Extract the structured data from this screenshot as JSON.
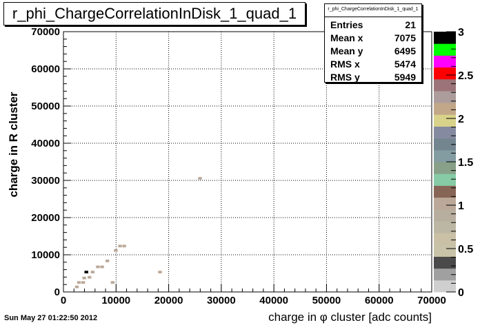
{
  "title": "r_phi_ChargeCorrelationInDisk_1_quad_1",
  "stats": {
    "name": "r_phi_ChargeCorrelationInDisk_1_quad_1",
    "rows": [
      {
        "label": "Entries",
        "value": "21"
      },
      {
        "label": "Mean x",
        "value": "7075"
      },
      {
        "label": "Mean y",
        "value": "6495"
      },
      {
        "label": "RMS x",
        "value": "5474"
      },
      {
        "label": "RMS y",
        "value": "5949"
      }
    ]
  },
  "timestamp": "Sun May 27 01:22:50 2012",
  "chart_data": {
    "type": "heatmap",
    "title": "r_phi_ChargeCorrelationInDisk_1_quad_1",
    "xlabel": "charge in φ cluster [adc counts]",
    "ylabel": "charge in R cluster",
    "xlim": [
      0,
      70000
    ],
    "ylim": [
      0,
      70000
    ],
    "xticks": [
      0,
      10000,
      20000,
      30000,
      40000,
      50000,
      60000,
      70000
    ],
    "yticks": [
      0,
      10000,
      20000,
      30000,
      40000,
      50000,
      60000,
      70000
    ],
    "grid": true,
    "bin_size": 700,
    "zlim": [
      0,
      3
    ],
    "zticks": [
      0,
      0.5,
      1,
      1.5,
      2,
      2.5,
      3
    ],
    "palette": [
      "#cfcfcf",
      "#a0a0a0",
      "#4a4a4a",
      "#c8c2a8",
      "#c9c0a6",
      "#bcb7a4",
      "#b8aea0",
      "#bba898",
      "#876556",
      "#86cba6",
      "#88a088",
      "#839ca2",
      "#73858f",
      "#868aa0",
      "#d9d28a",
      "#c2a888",
      "#ad9c9c",
      "#9b7378",
      "#ff0000",
      "#ff00ff",
      "#00ff00",
      "#000000"
    ],
    "points": [
      {
        "x": 2200,
        "y": 1000,
        "z": 1
      },
      {
        "x": 2600,
        "y": 2200,
        "z": 1
      },
      {
        "x": 3400,
        "y": 2200,
        "z": 1
      },
      {
        "x": 3600,
        "y": 3400,
        "z": 1
      },
      {
        "x": 4000,
        "y": 5000,
        "z": 3
      },
      {
        "x": 4600,
        "y": 3600,
        "z": 1
      },
      {
        "x": 5200,
        "y": 5000,
        "z": 1
      },
      {
        "x": 6200,
        "y": 6400,
        "z": 1
      },
      {
        "x": 7000,
        "y": 6400,
        "z": 1
      },
      {
        "x": 8000,
        "y": 8000,
        "z": 1
      },
      {
        "x": 9000,
        "y": 2200,
        "z": 1
      },
      {
        "x": 9600,
        "y": 10800,
        "z": 1
      },
      {
        "x": 10400,
        "y": 12000,
        "z": 1
      },
      {
        "x": 11200,
        "y": 12000,
        "z": 1
      },
      {
        "x": 18000,
        "y": 5000,
        "z": 1
      },
      {
        "x": 25600,
        "y": 30200,
        "z": 1
      }
    ]
  }
}
